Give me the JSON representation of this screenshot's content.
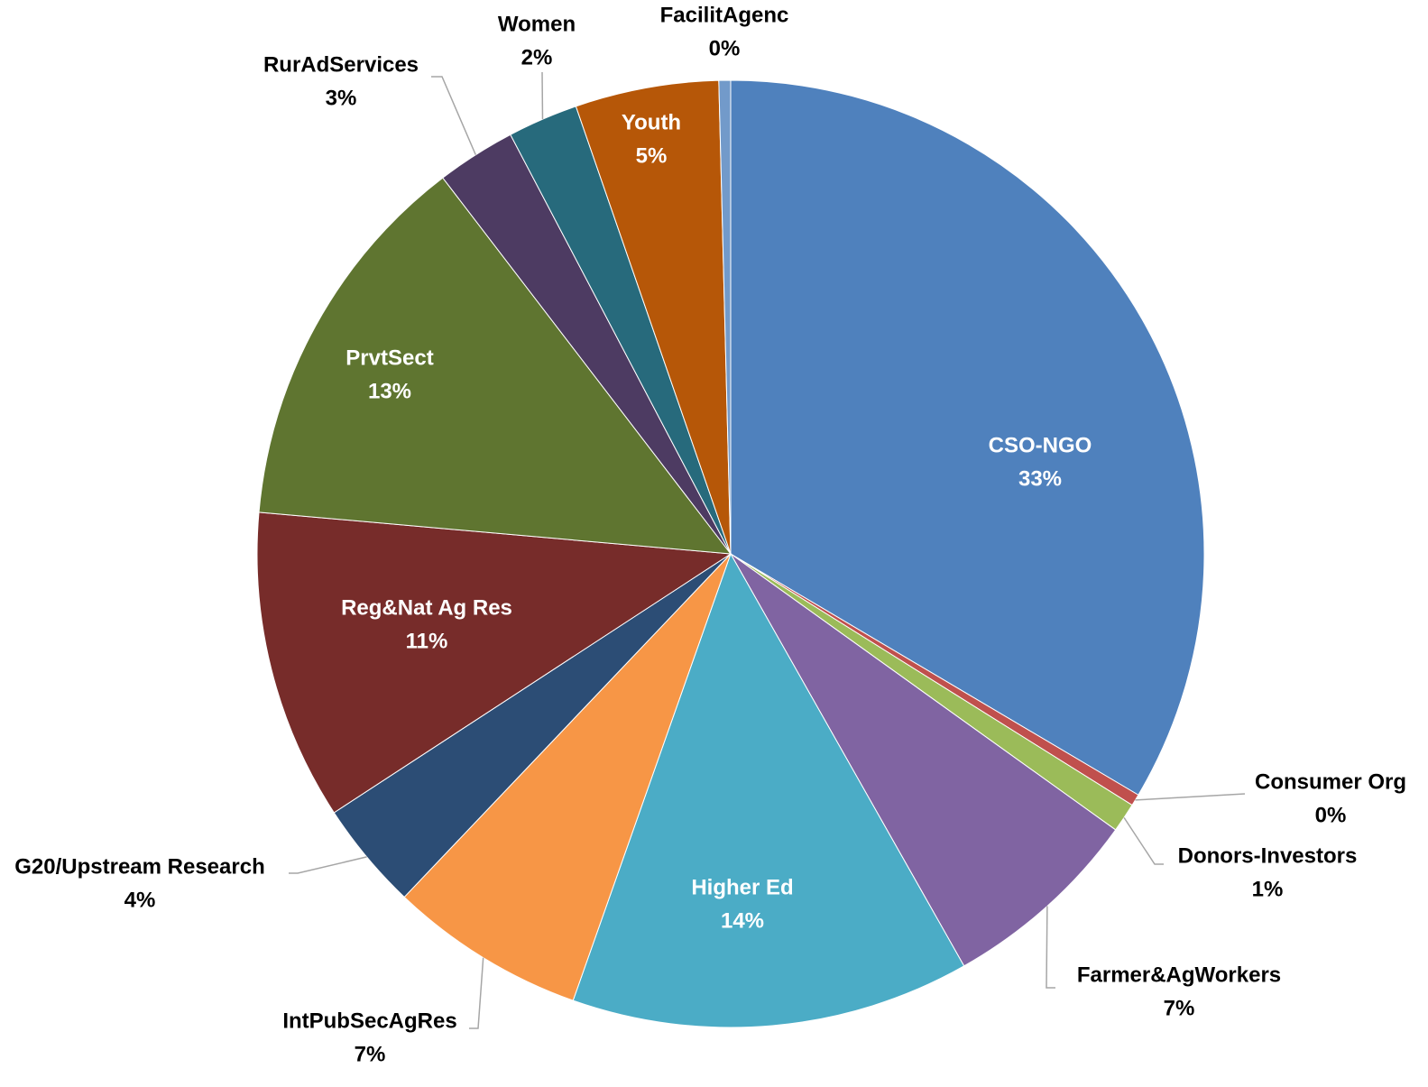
{
  "chart_data": {
    "type": "pie",
    "categories": [
      "CSO-NGO",
      "Consumer Org",
      "Donors-Investors",
      "Farmer&AgWorkers",
      "Higher Ed",
      "IntPubSecAgRes",
      "G20/Upstream Research",
      "Reg&Nat Ag Res",
      "PrvtSect",
      "RurAdServices",
      "Women",
      "Youth",
      "FacilitAgenc"
    ],
    "values": [
      33.5,
      0.4,
      1.0,
      6.9,
      13.6,
      6.7,
      3.7,
      10.6,
      13.2,
      2.7,
      2.4,
      4.9,
      0.4
    ],
    "value_labels": [
      "33%",
      "0%",
      "1%",
      "7%",
      "14%",
      "7%",
      "4%",
      "11%",
      "13%",
      "3%",
      "2%",
      "5%",
      "0%"
    ],
    "colors": [
      "#4f81bd",
      "#c0504d",
      "#9bbb59",
      "#8064a2",
      "#4bacc6",
      "#f79646",
      "#2c4d75",
      "#772c2a",
      "#5f7530",
      "#4d3b62",
      "#276a7c",
      "#b65708",
      "#729aca"
    ]
  }
}
